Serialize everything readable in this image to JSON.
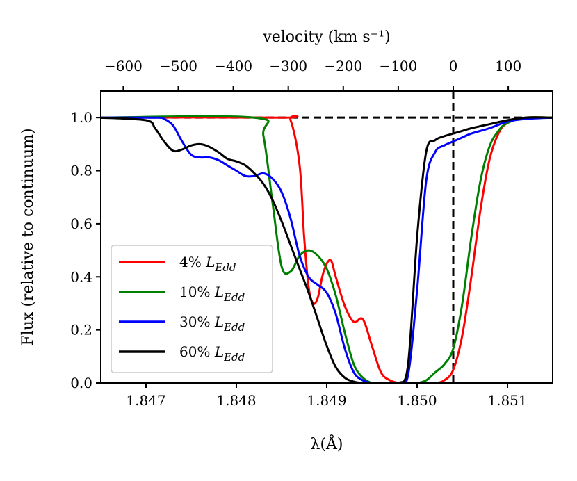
{
  "chart_data": {
    "type": "line",
    "xlabel": "λ(Å)",
    "ylabel": "Flux (relative to continuum)",
    "top_xlabel": "velocity (km s⁻¹)",
    "xlim": [
      1.8465,
      1.8515
    ],
    "ylim": [
      0.0,
      1.1
    ],
    "x_ticks": [
      1.847,
      1.848,
      1.849,
      1.85,
      1.851
    ],
    "x_tick_labels": [
      "1.847",
      "1.848",
      "1.849",
      "1.850",
      "1.851"
    ],
    "y_ticks": [
      0.0,
      0.2,
      0.4,
      0.6,
      0.8,
      1.0
    ],
    "y_tick_labels": [
      "0.0",
      "0.2",
      "0.4",
      "0.6",
      "0.8",
      "1.0"
    ],
    "top_ticks": [
      -600,
      -500,
      -400,
      -300,
      -200,
      -100,
      0,
      100
    ],
    "top_tick_labels": [
      "−600",
      "−500",
      "−400",
      "−300",
      "−200",
      "−100",
      "0",
      "100"
    ],
    "reference_lines": {
      "y": 1.0,
      "x": 1.8504,
      "style": "dashed",
      "color": "#000000"
    },
    "grid": false,
    "legend_position": "lower-left",
    "series": [
      {
        "name": "4% L_Edd",
        "legend_prefix": "4% ",
        "color": "#ff0000",
        "x": [
          1.8465,
          1.8485,
          1.8486,
          1.8487,
          1.84875,
          1.8488,
          1.84885,
          1.8489,
          1.84895,
          1.849,
          1.84905,
          1.8491,
          1.8492,
          1.8493,
          1.8494,
          1.8495,
          1.8496,
          1.8497,
          1.8498,
          1.8499,
          1.85,
          1.8501,
          1.8502,
          1.8503,
          1.8504,
          1.8505,
          1.8506,
          1.8507,
          1.8508,
          1.8509,
          1.851,
          1.8512,
          1.8515
        ],
        "y": [
          1.0,
          1.0,
          0.99,
          0.82,
          0.55,
          0.36,
          0.3,
          0.32,
          0.4,
          0.45,
          0.46,
          0.4,
          0.29,
          0.23,
          0.24,
          0.14,
          0.04,
          0.01,
          0.0,
          0.0,
          0.0,
          0.0,
          0.0,
          0.01,
          0.05,
          0.18,
          0.4,
          0.65,
          0.84,
          0.94,
          0.98,
          1.0,
          1.0
        ]
      },
      {
        "name": "10% L_Edd",
        "legend_prefix": "10% ",
        "color": "#008000",
        "x": [
          1.8465,
          1.8482,
          1.8483,
          1.8484,
          1.8485,
          1.8486,
          1.8487,
          1.8488,
          1.8489,
          1.849,
          1.8491,
          1.8492,
          1.8493,
          1.8494,
          1.8495,
          1.8496,
          1.8497,
          1.8498,
          1.8499,
          1.85,
          1.8501,
          1.8502,
          1.8503,
          1.8504,
          1.8505,
          1.8506,
          1.8507,
          1.8508,
          1.8509,
          1.851,
          1.8512,
          1.8515
        ],
        "y": [
          1.0,
          1.0,
          0.93,
          0.68,
          0.44,
          0.42,
          0.48,
          0.5,
          0.48,
          0.43,
          0.33,
          0.19,
          0.07,
          0.02,
          0.0,
          0.0,
          0.0,
          0.0,
          0.0,
          0.0,
          0.01,
          0.04,
          0.07,
          0.13,
          0.3,
          0.55,
          0.76,
          0.89,
          0.95,
          0.98,
          1.0,
          1.0
        ]
      },
      {
        "name": "30% L_Edd",
        "legend_prefix": "30% ",
        "color": "#0000ff",
        "x": [
          1.8465,
          1.8471,
          1.8472,
          1.8473,
          1.8474,
          1.8475,
          1.8476,
          1.8477,
          1.8478,
          1.8479,
          1.848,
          1.8481,
          1.8482,
          1.8483,
          1.8484,
          1.8485,
          1.8486,
          1.8487,
          1.8488,
          1.8489,
          1.849,
          1.8491,
          1.8492,
          1.8493,
          1.8494,
          1.8495,
          1.8496,
          1.8497,
          1.8498,
          1.8499,
          1.85,
          1.8501,
          1.8502,
          1.8503,
          1.8504,
          1.8505,
          1.8506,
          1.8508,
          1.851,
          1.8512,
          1.8515
        ],
        "y": [
          1.0,
          1.0,
          0.995,
          0.97,
          0.91,
          0.86,
          0.85,
          0.85,
          0.84,
          0.82,
          0.8,
          0.78,
          0.78,
          0.79,
          0.77,
          0.72,
          0.62,
          0.48,
          0.4,
          0.37,
          0.34,
          0.26,
          0.13,
          0.04,
          0.01,
          0.0,
          0.0,
          0.0,
          0.0,
          0.03,
          0.35,
          0.76,
          0.87,
          0.895,
          0.91,
          0.925,
          0.94,
          0.96,
          0.985,
          0.995,
          1.0
        ]
      },
      {
        "name": "60% L_Edd",
        "legend_prefix": "60% ",
        "color": "#000000",
        "x": [
          1.8465,
          1.847,
          1.8471,
          1.8472,
          1.8473,
          1.8474,
          1.8475,
          1.8476,
          1.8477,
          1.8478,
          1.8479,
          1.848,
          1.8481,
          1.8482,
          1.8483,
          1.8484,
          1.8485,
          1.8486,
          1.8487,
          1.8488,
          1.8489,
          1.849,
          1.8491,
          1.8492,
          1.8493,
          1.8494,
          1.8495,
          1.8496,
          1.8497,
          1.8498,
          1.8499,
          1.85,
          1.8501,
          1.8502,
          1.8503,
          1.8504,
          1.8505,
          1.8506,
          1.8508,
          1.851,
          1.8512,
          1.8515
        ],
        "y": [
          1.0,
          0.99,
          0.96,
          0.91,
          0.875,
          0.88,
          0.895,
          0.9,
          0.89,
          0.87,
          0.845,
          0.835,
          0.82,
          0.79,
          0.75,
          0.69,
          0.61,
          0.52,
          0.43,
          0.34,
          0.24,
          0.14,
          0.06,
          0.02,
          0.005,
          0.0,
          0.0,
          0.0,
          0.0,
          0.0,
          0.07,
          0.55,
          0.87,
          0.915,
          0.93,
          0.94,
          0.95,
          0.96,
          0.975,
          0.99,
          1.0,
          1.0
        ]
      }
    ]
  }
}
